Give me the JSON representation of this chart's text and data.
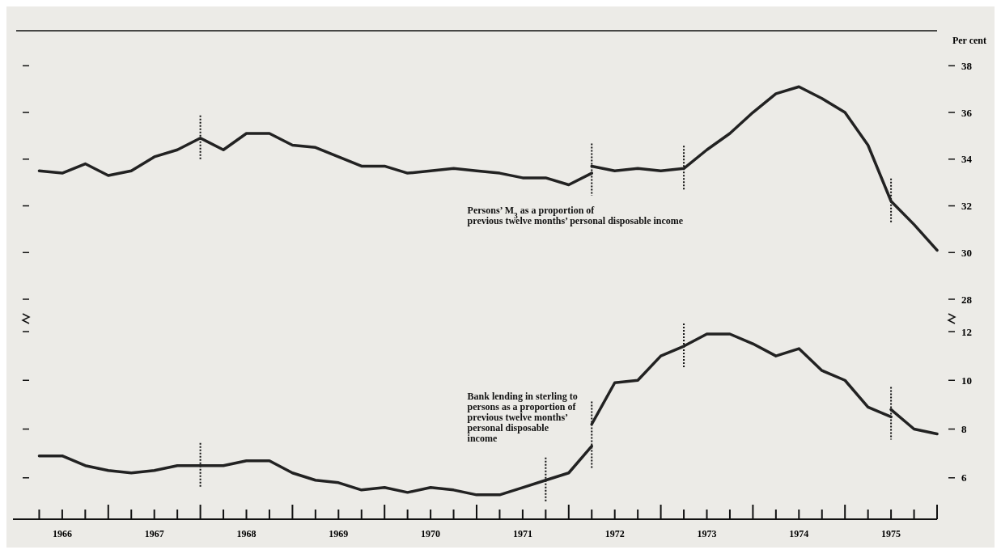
{
  "chart_data": [
    {
      "type": "line",
      "ylabel": "Per cent",
      "xlim": [
        1966,
        1976
      ],
      "ylim": [
        28,
        39.5
      ],
      "yticks": [
        28,
        30,
        32,
        34,
        36,
        38
      ],
      "tick_labels": "y",
      "marker": "none",
      "line_style": "solid",
      "series": [
        {
          "color": "#222222",
          "x": [
            1966.25,
            1966.5,
            1966.75,
            1967,
            1967.25,
            1967.5,
            1967.75,
            1968,
            1968.25,
            1968.5,
            1968.75,
            1969,
            1969.25,
            1969.5,
            1969.75,
            1970,
            1970.25,
            1970.5,
            1970.75,
            1971,
            1971.25,
            1971.5,
            1971.75,
            1972,
            1972.25
          ],
          "values": [
            33.5,
            33.4,
            33.8,
            33.3,
            33.5,
            34.1,
            34.4,
            34.9,
            34.4,
            35.1,
            35.1,
            34.6,
            34.5,
            34.1,
            33.7,
            33.7,
            33.4,
            33.5,
            33.6,
            33.5,
            33.4,
            33.2,
            33.2,
            32.9,
            33.4
          ]
        },
        {
          "color": "#222222",
          "x": [
            1972.25,
            1972.5,
            1972.75,
            1973,
            1973.25,
            1973.5,
            1973.75,
            1974,
            1974.25,
            1974.5,
            1974.75,
            1975,
            1975.25,
            1975.5,
            1975.75,
            1976
          ],
          "values": [
            33.7,
            33.5,
            33.6,
            33.5,
            33.6,
            34.4,
            35.1,
            36,
            36.8,
            37.1,
            36.6,
            36,
            34.6,
            32.2,
            31.2,
            30.1
          ]
        }
      ],
      "ref_lines": [
        {
          "axis": "x",
          "value": 1968,
          "line_style": "dotted"
        },
        {
          "axis": "x",
          "value": 1972.25,
          "line_style": "dotted"
        },
        {
          "axis": "x",
          "value": 1973.25,
          "line_style": "dotted"
        },
        {
          "axis": "x",
          "value": 1975.5,
          "line_style": "dotted"
        }
      ],
      "annotations": [
        "Persons’ M$_{3}$ as a proportion of\nprevious twelve months’ personal disposable income"
      ]
    },
    {
      "type": "line",
      "xlim": [
        1966,
        1976
      ],
      "ylim": [
        4.3,
        12
      ],
      "yticks": [
        6,
        8,
        10,
        12
      ],
      "marker": "none",
      "line_style": "solid",
      "xticks": [
        {
          "value": 1966.25,
          "label": null
        },
        {
          "value": 1966.5,
          "label": "1966"
        },
        {
          "value": 1966.75,
          "label": null
        },
        {
          "value": 1967,
          "label": null
        },
        {
          "value": 1967.25,
          "label": null
        },
        {
          "value": 1967.5,
          "label": "1967"
        },
        {
          "value": 1967.75,
          "label": null
        },
        {
          "value": 1968,
          "label": null
        },
        {
          "value": 1968.25,
          "label": null
        },
        {
          "value": 1968.5,
          "label": "1968"
        },
        {
          "value": 1968.75,
          "label": null
        },
        {
          "value": 1969,
          "label": null
        },
        {
          "value": 1969.25,
          "label": null
        },
        {
          "value": 1969.5,
          "label": "1969"
        },
        {
          "value": 1969.75,
          "label": null
        },
        {
          "value": 1970,
          "label": null
        },
        {
          "value": 1970.25,
          "label": null
        },
        {
          "value": 1970.5,
          "label": "1970"
        },
        {
          "value": 1970.75,
          "label": null
        },
        {
          "value": 1971,
          "label": null
        },
        {
          "value": 1971.25,
          "label": null
        },
        {
          "value": 1971.5,
          "label": "1971"
        },
        {
          "value": 1971.75,
          "label": null
        },
        {
          "value": 1972,
          "label": null
        },
        {
          "value": 1972.25,
          "label": null
        },
        {
          "value": 1972.5,
          "label": "1972"
        },
        {
          "value": 1972.75,
          "label": null
        },
        {
          "value": 1973,
          "label": null
        },
        {
          "value": 1973.25,
          "label": null
        },
        {
          "value": 1973.5,
          "label": "1973"
        },
        {
          "value": 1973.75,
          "label": null
        },
        {
          "value": 1974,
          "label": null
        },
        {
          "value": 1974.25,
          "label": null
        },
        {
          "value": 1974.5,
          "label": "1974"
        },
        {
          "value": 1974.75,
          "label": null
        },
        {
          "value": 1975,
          "label": null
        },
        {
          "value": 1975.25,
          "label": null
        },
        {
          "value": 1975.5,
          "label": "1975"
        },
        {
          "value": 1975.75,
          "label": null
        },
        {
          "value": 1976,
          "label": null
        }
      ],
      "series": [
        {
          "color": "#222222",
          "x": [
            1966.25,
            1966.5,
            1966.75,
            1967,
            1967.25,
            1967.5,
            1967.75,
            1968,
            1968.25,
            1968.5,
            1968.75,
            1969,
            1969.25,
            1969.5,
            1969.75,
            1970,
            1970.25,
            1970.5,
            1970.75,
            1971,
            1971.25,
            1971.5,
            1971.75,
            1972,
            1972.25
          ],
          "values": [
            6.9,
            6.9,
            6.5,
            6.3,
            6.2,
            6.3,
            6.5,
            6.5,
            6.5,
            6.7,
            6.7,
            6.2,
            5.9,
            5.8,
            5.5,
            5.6,
            5.4,
            5.6,
            5.5,
            5.3,
            5.3,
            5.6,
            5.9,
            6.2,
            7.3
          ]
        },
        {
          "color": "#222222",
          "x": [
            1972.25,
            1972.5,
            1972.75,
            1973,
            1973.25,
            1973.5,
            1973.75,
            1974,
            1974.25,
            1974.5,
            1974.75,
            1975,
            1975.25,
            1975.5
          ],
          "values": [
            8.2,
            9.9,
            10,
            11,
            11.4,
            11.9,
            11.9,
            11.5,
            11,
            11.3,
            10.4,
            10,
            8.9,
            8.5
          ]
        },
        {
          "color": "#222222",
          "x": [
            1975.5,
            1975.75,
            1976
          ],
          "values": [
            8.8,
            8,
            7.8
          ]
        }
      ],
      "ref_lines": [
        {
          "axis": "x",
          "value": 1968,
          "line_style": "dotted"
        },
        {
          "axis": "x",
          "value": 1971.75,
          "line_style": "dotted"
        },
        {
          "axis": "x",
          "value": 1972.25,
          "line_style": "dotted"
        },
        {
          "axis": "x",
          "value": 1973.25,
          "line_style": "dotted"
        },
        {
          "axis": "x",
          "value": 1975.5,
          "line_style": "dotted"
        }
      ],
      "annotations": [
        "Bank lending in sterling to\npersons as a proportion of\nprevious twelve months’\npersonal disposable\nincome"
      ]
    }
  ]
}
